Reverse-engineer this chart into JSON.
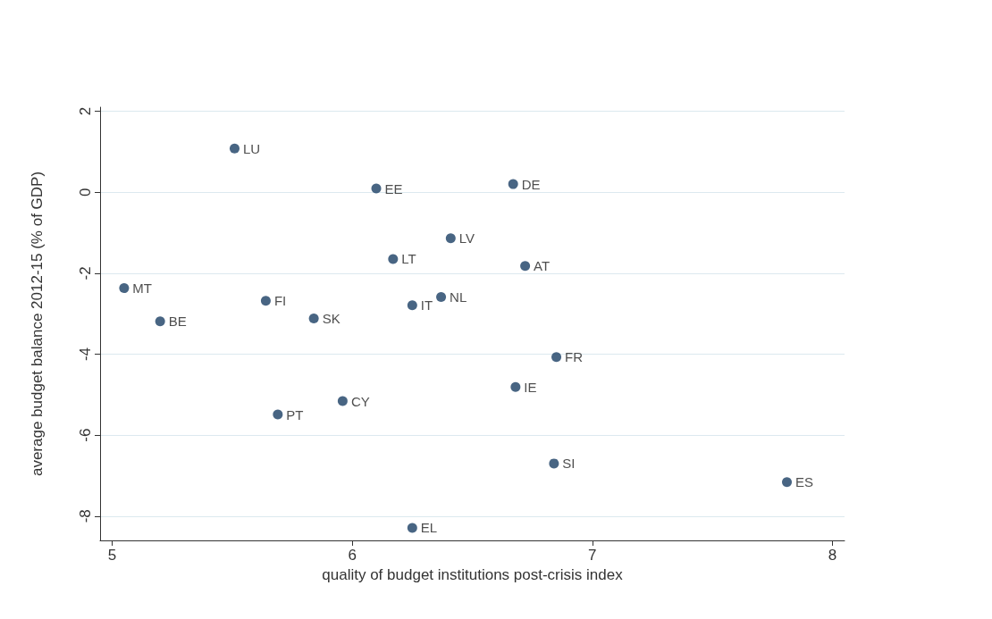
{
  "chart_data": {
    "type": "scatter",
    "xlabel": "quality of budget institutions post-crisis index",
    "ylabel": "average budget balance 2012-15 (% of GDP)",
    "x": [
      5.51,
      6.1,
      6.67,
      6.41,
      6.17,
      6.72,
      5.05,
      5.64,
      6.37,
      6.25,
      5.84,
      5.2,
      6.85,
      6.68,
      5.96,
      5.69,
      6.84,
      7.81,
      6.25
    ],
    "values": [
      1.08,
      0.09,
      0.2,
      -1.14,
      -1.65,
      -1.82,
      -2.37,
      -2.68,
      -2.59,
      -2.79,
      -3.12,
      -3.19,
      -4.07,
      -4.81,
      -5.16,
      -5.49,
      -6.7,
      -7.16,
      -8.29
    ],
    "value_labels": [
      "LU",
      "EE",
      "DE",
      "LV",
      "LT",
      "AT",
      "MT",
      "FI",
      "NL",
      "IT",
      "SK",
      "BE",
      "FR",
      "IE",
      "CY",
      "PT",
      "SI",
      "ES",
      "EL"
    ],
    "color": "#1a3e64",
    "marker": "circle",
    "xlim": [
      4.95,
      8.05
    ],
    "xticks": [
      5,
      6,
      7,
      8
    ],
    "ylim": [
      -8.6,
      2.1
    ],
    "yticks": [
      -8,
      -6,
      -4,
      -2,
      0,
      2
    ],
    "grid": "y"
  }
}
